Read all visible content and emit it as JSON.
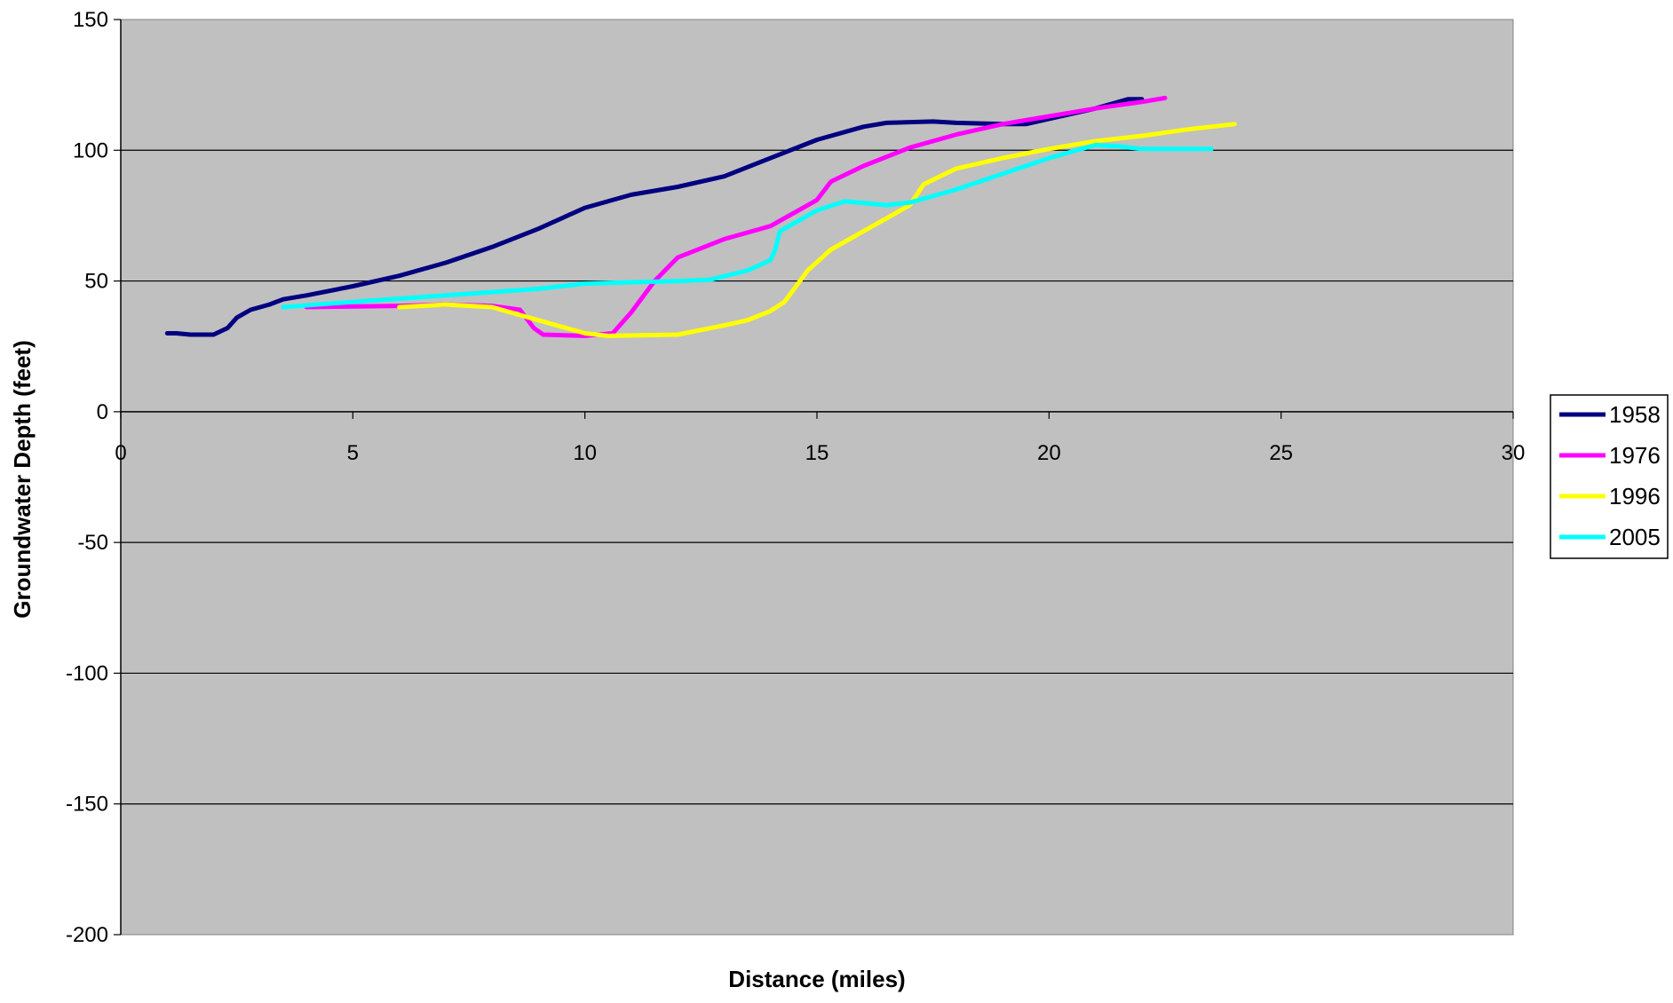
{
  "chart_data": {
    "type": "line",
    "xlabel": "Distance (miles)",
    "ylabel": "Groundwater Depth (feet)",
    "xlim": [
      0,
      30
    ],
    "ylim": [
      -200,
      150
    ],
    "xticks": [
      0,
      5,
      10,
      15,
      20,
      25,
      30
    ],
    "yticks": [
      150,
      100,
      50,
      0,
      -50,
      -100,
      -150,
      -200
    ],
    "grid": "horizontal",
    "legend": "right",
    "plot_background": "#c0c0c0",
    "series": [
      {
        "name": "1958",
        "color": "#000080",
        "points": [
          [
            1,
            30
          ],
          [
            1.2,
            30
          ],
          [
            1.5,
            29.5
          ],
          [
            2,
            29.5
          ],
          [
            2.3,
            32
          ],
          [
            2.5,
            36
          ],
          [
            2.8,
            39
          ],
          [
            3.2,
            41
          ],
          [
            3.5,
            43
          ],
          [
            4,
            44.5
          ],
          [
            5,
            48
          ],
          [
            6,
            52
          ],
          [
            7,
            57
          ],
          [
            8,
            63
          ],
          [
            9,
            70
          ],
          [
            10,
            78
          ],
          [
            11,
            83
          ],
          [
            12,
            86
          ],
          [
            13,
            90
          ],
          [
            14,
            97
          ],
          [
            15,
            104
          ],
          [
            16,
            109
          ],
          [
            16.5,
            110.5
          ],
          [
            17.5,
            111
          ],
          [
            18,
            110.5
          ],
          [
            19,
            110
          ],
          [
            19.5,
            110
          ],
          [
            20,
            112
          ],
          [
            21,
            116
          ],
          [
            21.7,
            119.5
          ],
          [
            22,
            119.5
          ]
        ]
      },
      {
        "name": "1976",
        "color": "#ff00ff",
        "points": [
          [
            4,
            40
          ],
          [
            6,
            40.5
          ],
          [
            7,
            41
          ],
          [
            8,
            40.5
          ],
          [
            8.6,
            39
          ],
          [
            8.9,
            32
          ],
          [
            9.1,
            29.5
          ],
          [
            10,
            29
          ],
          [
            10.6,
            30
          ],
          [
            11,
            38
          ],
          [
            11.5,
            50
          ],
          [
            12,
            59
          ],
          [
            13,
            66
          ],
          [
            14,
            71
          ],
          [
            15,
            81
          ],
          [
            15.3,
            88
          ],
          [
            16,
            94
          ],
          [
            17,
            101
          ],
          [
            18,
            106
          ],
          [
            19,
            110
          ],
          [
            20,
            113
          ],
          [
            21,
            116
          ],
          [
            22,
            118.5
          ],
          [
            22.5,
            120
          ]
        ]
      },
      {
        "name": "1996",
        "color": "#ffff00",
        "points": [
          [
            6,
            40
          ],
          [
            7,
            41
          ],
          [
            8,
            40
          ],
          [
            9,
            35
          ],
          [
            10,
            30
          ],
          [
            10.5,
            29
          ],
          [
            12,
            29.5
          ],
          [
            13,
            33
          ],
          [
            13.5,
            35
          ],
          [
            14,
            38.5
          ],
          [
            14.3,
            42
          ],
          [
            14.8,
            54
          ],
          [
            15.3,
            62
          ],
          [
            16,
            69
          ],
          [
            16.5,
            74
          ],
          [
            17,
            79
          ],
          [
            17.3,
            87
          ],
          [
            18,
            93
          ],
          [
            19,
            97
          ],
          [
            20,
            100.5
          ],
          [
            21,
            103.5
          ],
          [
            22,
            105.5
          ],
          [
            23,
            108
          ],
          [
            24,
            110
          ]
        ]
      },
      {
        "name": "2005",
        "color": "#00ffff",
        "points": [
          [
            3.5,
            40
          ],
          [
            5,
            42
          ],
          [
            7,
            44.5
          ],
          [
            9,
            47
          ],
          [
            10,
            49
          ],
          [
            11,
            49.5
          ],
          [
            12,
            50
          ],
          [
            12.7,
            50.5
          ],
          [
            13.5,
            54
          ],
          [
            14,
            58
          ],
          [
            14.1,
            62
          ],
          [
            14.2,
            69
          ],
          [
            15,
            77
          ],
          [
            15.6,
            80.5
          ],
          [
            16.5,
            79
          ],
          [
            17,
            80
          ],
          [
            18,
            85
          ],
          [
            19,
            91
          ],
          [
            20,
            97
          ],
          [
            21,
            102
          ],
          [
            21.5,
            101.5
          ],
          [
            22,
            100.5
          ],
          [
            23.5,
            100.5
          ]
        ]
      }
    ]
  }
}
